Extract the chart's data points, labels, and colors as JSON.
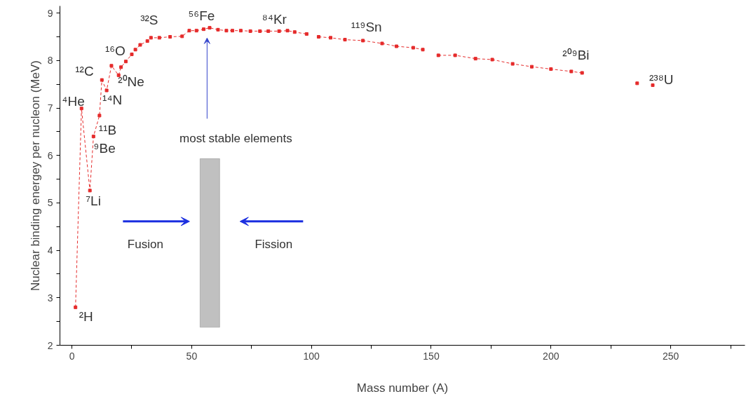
{
  "chart_data": {
    "type": "line",
    "xlabel": "Mass number (A)",
    "ylabel": "Nuclear binding energey per nucleon (MeV)",
    "xlim": [
      -5,
      281
    ],
    "ylim": [
      2,
      9.15
    ],
    "xticks": [
      0,
      {
        "value": 25,
        "label": null
      },
      50,
      {
        "value": 75,
        "label": null
      },
      100,
      {
        "value": 125,
        "label": null
      },
      150,
      {
        "value": 175,
        "label": null
      },
      200,
      {
        "value": 225,
        "label": null
      },
      250,
      {
        "value": 275,
        "label": null
      }
    ],
    "yticks": [
      2,
      {
        "value": 2.5,
        "label": null
      },
      3,
      {
        "value": 3.5,
        "label": null
      },
      4,
      {
        "value": 4.5,
        "label": null
      },
      5,
      {
        "value": 5.5,
        "label": null
      },
      6,
      {
        "value": 6.5,
        "label": null
      },
      7,
      {
        "value": 7.5,
        "label": null
      },
      8,
      {
        "value": 8.5,
        "label": null
      },
      9
    ],
    "grid": false,
    "marker": "square",
    "line_style": "dashed",
    "series": [
      {
        "color": "#e52b2b",
        "x": [
          1.5,
          4,
          7.5,
          9,
          11.5,
          12.5,
          14.5,
          16.5,
          19.5,
          20.5,
          22.5,
          25,
          26.5,
          28.5,
          31.5,
          33,
          36.5,
          41,
          46,
          49,
          52,
          55,
          57.5,
          61,
          64.5,
          67,
          70.5,
          74.5,
          78.5,
          82,
          86.5,
          90,
          93,
          98,
          100,
          103,
          108,
          114,
          121.5,
          129.5,
          135.5,
          142.5,
          146.5,
          150,
          153,
          160,
          168.5,
          175.5,
          184,
          192,
          200,
          208.5,
          213,
          225,
          236,
          239,
          242.5
        ],
        "values": [
          2.8,
          6.99,
          5.26,
          6.4,
          6.84,
          7.59,
          7.37,
          7.89,
          7.69,
          7.86,
          7.98,
          8.13,
          8.23,
          8.33,
          8.41,
          8.48,
          8.48,
          8.5,
          8.51,
          8.63,
          8.63,
          8.66,
          8.69,
          8.65,
          8.63,
          8.63,
          8.63,
          8.62,
          8.62,
          8.62,
          8.62,
          8.63,
          8.6,
          8.56,
          null,
          8.5,
          8.48,
          8.44,
          8.42,
          8.36,
          8.3,
          8.27,
          8.23,
          null,
          8.11,
          8.11,
          8.04,
          8.02,
          7.93,
          7.87,
          7.82,
          7.77,
          7.74,
          null,
          7.52,
          null,
          7.48
        ]
      }
    ],
    "bands": [
      {
        "axis": "x",
        "from": 53.5,
        "to": 61.7,
        "color": "#c0c0c0"
      }
    ],
    "annotations": [
      {
        "text": "²H",
        "x": 1.5,
        "y": 2.8
      },
      {
        "text": "⁴He",
        "x": 4,
        "y": 6.99
      },
      {
        "text": "⁷Li",
        "x": 7.5,
        "y": 5.26
      },
      {
        "text": "⁹Be",
        "x": 9,
        "y": 6.4
      },
      {
        "text": "¹¹B",
        "x": 11.5,
        "y": 6.84
      },
      {
        "text": "¹²C",
        "x": 12.5,
        "y": 7.59
      },
      {
        "text": "¹⁴N",
        "x": 14.5,
        "y": 7.37
      },
      {
        "text": "¹⁶O",
        "x": 16.5,
        "y": 7.89
      },
      {
        "text": "²⁰Ne",
        "x": 19.5,
        "y": 7.69
      },
      {
        "text": "³²S",
        "x": 31.5,
        "y": 8.41
      },
      {
        "text": "⁵⁶Fe",
        "x": 55,
        "y": 8.66
      },
      {
        "text": "⁸⁴Kr",
        "x": 82,
        "y": 8.62
      },
      {
        "text": "¹¹⁹Sn",
        "x": 121.5,
        "y": 8.42
      },
      {
        "text": "²⁰⁹Bi",
        "x": 213,
        "y": 7.74
      },
      {
        "text": "²³⁸U",
        "x": 242.5,
        "y": 7.48
      },
      "most stable elements",
      "Fusion",
      "Fission"
    ]
  }
}
